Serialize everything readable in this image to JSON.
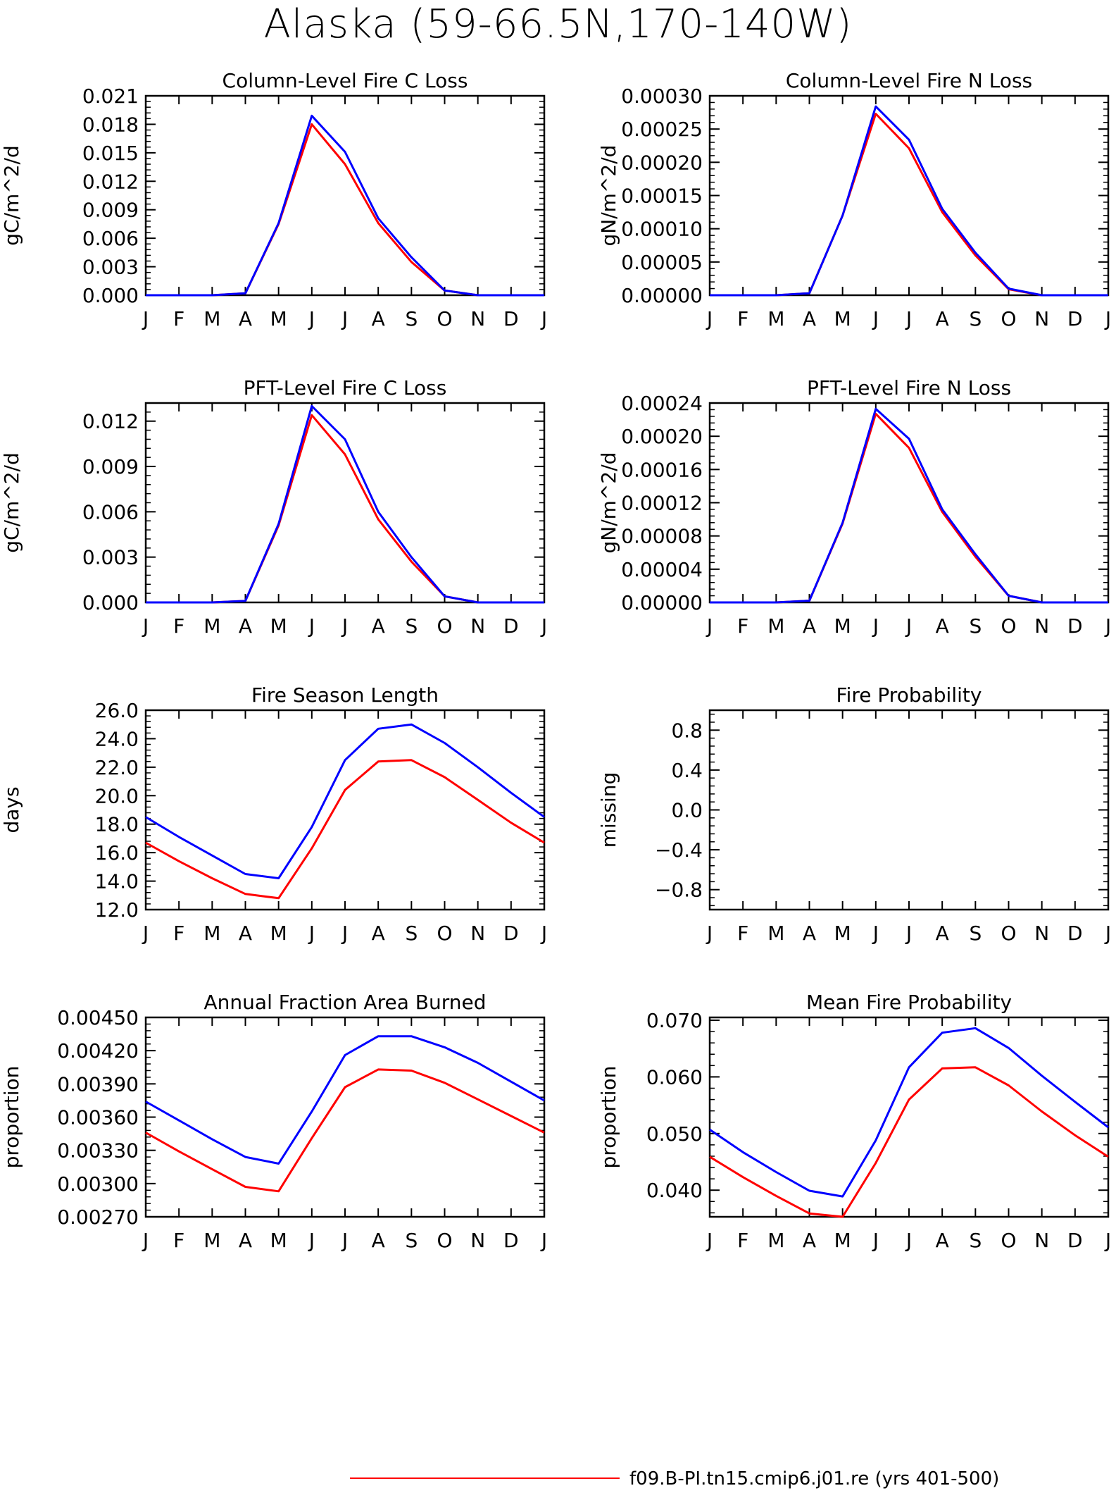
{
  "title": "Alaska (59-66.5N,170-140W)",
  "colors": {
    "red": "#ff0000",
    "blue": "#0000ff",
    "axis": "#000000"
  },
  "legend": {
    "entries": [
      {
        "label": "f09.B-PI.tn15.cmip6.j01.re (yrs 401-500)",
        "color": "#ff0000"
      }
    ]
  },
  "chart_data": [
    {
      "type": "line",
      "title": "Column-Level Fire C Loss",
      "ylabel": "gC/m^2/d",
      "categories": [
        "J",
        "F",
        "M",
        "A",
        "M",
        "J",
        "J",
        "A",
        "S",
        "O",
        "N",
        "D",
        "J"
      ],
      "ylim": [
        0,
        0.021
      ],
      "yticks": [
        "0.000",
        "0.003",
        "0.006",
        "0.009",
        "0.012",
        "0.015",
        "0.018",
        "0.021"
      ],
      "series": [
        {
          "color": "#ff0000",
          "values": [
            0,
            0,
            0,
            0.0002,
            0.0075,
            0.018,
            0.0138,
            0.0076,
            0.0035,
            0.0005,
            0,
            0,
            0
          ]
        },
        {
          "color": "#0000ff",
          "values": [
            0,
            0,
            0,
            0.0002,
            0.0076,
            0.0189,
            0.0151,
            0.0081,
            0.004,
            0.0005,
            0,
            0,
            0
          ]
        }
      ]
    },
    {
      "type": "line",
      "title": "Column-Level Fire N Loss",
      "ylabel": "gN/m^2/d",
      "categories": [
        "J",
        "F",
        "M",
        "A",
        "M",
        "J",
        "J",
        "A",
        "S",
        "O",
        "N",
        "D",
        "J"
      ],
      "ylim": [
        0,
        0.0003
      ],
      "yticks": [
        "0.00000",
        "0.00005",
        "0.00010",
        "0.00015",
        "0.00020",
        "0.00025",
        "0.00030"
      ],
      "series": [
        {
          "color": "#ff0000",
          "values": [
            0,
            0,
            0,
            3e-06,
            0.00012,
            0.000273,
            0.000221,
            0.000125,
            6e-05,
            9e-06,
            0,
            0,
            0
          ]
        },
        {
          "color": "#0000ff",
          "values": [
            0,
            0,
            0,
            3e-06,
            0.00012,
            0.000284,
            0.000234,
            0.00013,
            6.4e-05,
            1e-05,
            0,
            0,
            0
          ]
        }
      ]
    },
    {
      "type": "line",
      "title": "PFT-Level Fire C Loss",
      "ylabel": "gC/m^2/d",
      "categories": [
        "J",
        "F",
        "M",
        "A",
        "M",
        "J",
        "J",
        "A",
        "S",
        "O",
        "N",
        "D",
        "J"
      ],
      "ylim": [
        0,
        0.0132
      ],
      "yticks": [
        "0.000",
        "0.003",
        "0.006",
        "0.009",
        "0.012"
      ],
      "ytickvalues": [
        0,
        0.003,
        0.006,
        0.009,
        0.012
      ],
      "series": [
        {
          "color": "#ff0000",
          "values": [
            0,
            0,
            0,
            0.0001,
            0.0051,
            0.0124,
            0.0098,
            0.0055,
            0.0027,
            0.0004,
            0,
            0,
            0
          ]
        },
        {
          "color": "#0000ff",
          "values": [
            0,
            0,
            0,
            0.0001,
            0.0052,
            0.013,
            0.0108,
            0.006,
            0.003,
            0.0004,
            0,
            0,
            0
          ]
        }
      ]
    },
    {
      "type": "line",
      "title": "PFT-Level Fire N Loss",
      "ylabel": "gN/m^2/d",
      "categories": [
        "J",
        "F",
        "M",
        "A",
        "M",
        "J",
        "J",
        "A",
        "S",
        "O",
        "N",
        "D",
        "J"
      ],
      "ylim": [
        0,
        0.00024
      ],
      "yticks": [
        "0.00000",
        "0.00004",
        "0.00008",
        "0.00012",
        "0.00016",
        "0.00020",
        "0.00024"
      ],
      "series": [
        {
          "color": "#ff0000",
          "values": [
            0,
            0,
            0,
            2e-06,
            9.5e-05,
            0.000227,
            0.000186,
            0.000109,
            5.5e-05,
            8e-06,
            0,
            0,
            0
          ]
        },
        {
          "color": "#0000ff",
          "values": [
            0,
            0,
            0,
            2e-06,
            9.6e-05,
            0.000233,
            0.000197,
            0.000112,
            5.8e-05,
            8e-06,
            0,
            0,
            0
          ]
        }
      ]
    },
    {
      "type": "line",
      "title": "Fire Season Length",
      "ylabel": "days",
      "categories": [
        "J",
        "F",
        "M",
        "A",
        "M",
        "J",
        "J",
        "A",
        "S",
        "O",
        "N",
        "D",
        "J"
      ],
      "ylim": [
        12,
        26
      ],
      "yticks": [
        "12.0",
        "14.0",
        "16.0",
        "18.0",
        "20.0",
        "22.0",
        "24.0",
        "26.0"
      ],
      "series": [
        {
          "color": "#ff0000",
          "values": [
            16.7,
            15.4,
            14.2,
            13.1,
            12.8,
            16.3,
            20.4,
            22.4,
            22.5,
            21.3,
            19.7,
            18.1,
            16.7
          ]
        },
        {
          "color": "#0000ff",
          "values": [
            18.5,
            17.1,
            15.8,
            14.5,
            14.2,
            17.8,
            22.5,
            24.7,
            25.0,
            23.7,
            22.0,
            20.2,
            18.5
          ]
        }
      ]
    },
    {
      "type": "line",
      "title": "Fire Probability",
      "ylabel": "missing",
      "categories": [
        "J",
        "F",
        "M",
        "A",
        "M",
        "J",
        "J",
        "A",
        "S",
        "O",
        "N",
        "D",
        "J"
      ],
      "ylim": [
        -1,
        1
      ],
      "yticks": [
        "-0.8",
        "-0.4",
        "0.0",
        "0.4",
        "0.8"
      ],
      "ytickvalues": [
        -0.8,
        -0.4,
        0,
        0.4,
        0.8
      ],
      "series": []
    },
    {
      "type": "line",
      "title": "Annual Fraction Area Burned",
      "ylabel": "proportion",
      "categories": [
        "J",
        "F",
        "M",
        "A",
        "M",
        "J",
        "J",
        "A",
        "S",
        "O",
        "N",
        "D",
        "J"
      ],
      "ylim": [
        0.0027,
        0.0045
      ],
      "yticks": [
        "0.00270",
        "0.00300",
        "0.00330",
        "0.00360",
        "0.00390",
        "0.00420",
        "0.00450"
      ],
      "series": [
        {
          "color": "#ff0000",
          "values": [
            0.00346,
            0.00329,
            0.00313,
            0.00297,
            0.00293,
            0.00341,
            0.00387,
            0.00403,
            0.00402,
            0.00391,
            0.00376,
            0.00361,
            0.00346
          ]
        },
        {
          "color": "#0000ff",
          "values": [
            0.00374,
            0.00357,
            0.0034,
            0.00324,
            0.00318,
            0.00365,
            0.00416,
            0.00433,
            0.00433,
            0.00423,
            0.00409,
            0.00392,
            0.00375
          ]
        }
      ]
    },
    {
      "type": "line",
      "title": "Mean Fire Probability",
      "ylabel": "proportion",
      "categories": [
        "J",
        "F",
        "M",
        "A",
        "M",
        "J",
        "J",
        "A",
        "S",
        "O",
        "N",
        "D",
        "J"
      ],
      "ylim": [
        0.0353,
        0.0705
      ],
      "yticks": [
        "0.040",
        "0.050",
        "0.060",
        "0.070"
      ],
      "ytickvalues": [
        0.04,
        0.05,
        0.06,
        0.07
      ],
      "series": [
        {
          "color": "#ff0000",
          "values": [
            0.0459,
            0.0423,
            0.039,
            0.0359,
            0.0353,
            0.0448,
            0.056,
            0.0615,
            0.0617,
            0.0585,
            0.0539,
            0.0497,
            0.0459
          ]
        },
        {
          "color": "#0000ff",
          "values": [
            0.0507,
            0.0467,
            0.0432,
            0.0399,
            0.0389,
            0.0488,
            0.0617,
            0.0678,
            0.0686,
            0.0651,
            0.0602,
            0.0556,
            0.0511
          ]
        }
      ]
    }
  ]
}
